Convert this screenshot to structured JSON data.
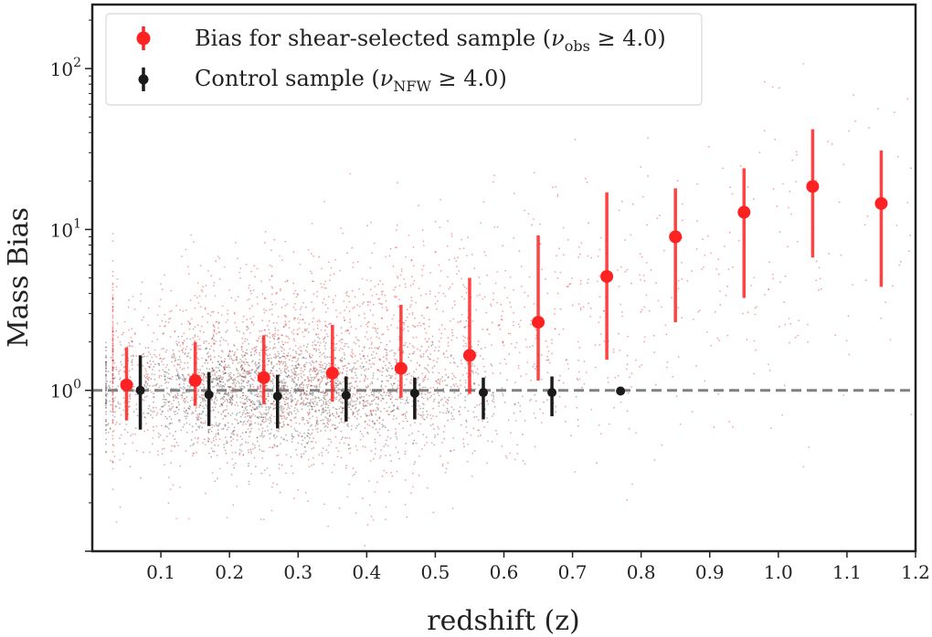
{
  "chart_data": {
    "type": "scatter",
    "title": "",
    "xlabel": "redshift (z)",
    "ylabel": "Mass Bias",
    "xlim": [
      0.0,
      1.2
    ],
    "ylim": [
      0.1,
      250
    ],
    "yscale": "log",
    "grid": false,
    "legend_position": "top-left",
    "x_ticks": [
      "0.1",
      "0.2",
      "0.3",
      "0.4",
      "0.5",
      "0.6",
      "0.7",
      "0.8",
      "0.9",
      "1.0",
      "1.1",
      "1.2"
    ],
    "y_ticks": [
      {
        "base": "10",
        "exp": "0",
        "value": 1
      },
      {
        "base": "10",
        "exp": "1",
        "value": 10
      },
      {
        "base": "10",
        "exp": "2",
        "value": 100
      }
    ],
    "reference_line": {
      "y": 1.0,
      "style": "dashed",
      "color": "#808080"
    },
    "series": [
      {
        "name": "Bias for shear-selected sample",
        "legend_pre": "Bias for shear-selected sample (",
        "legend_sym": "ν",
        "legend_sub": "obs",
        "legend_post": " ≥ 4.0)",
        "color": "#ff2222",
        "x": [
          0.05,
          0.15,
          0.25,
          0.35,
          0.45,
          0.55,
          0.65,
          0.75,
          0.85,
          0.95,
          1.05,
          1.15
        ],
        "y": [
          1.08,
          1.15,
          1.2,
          1.28,
          1.37,
          1.65,
          2.65,
          5.1,
          9.0,
          12.8,
          18.5,
          14.5
        ],
        "y_low": [
          0.65,
          0.8,
          0.82,
          0.85,
          0.9,
          0.95,
          1.15,
          1.55,
          2.65,
          3.75,
          6.7,
          4.4
        ],
        "y_high": [
          1.85,
          2.0,
          2.2,
          2.55,
          3.4,
          5.0,
          9.2,
          17.0,
          18.0,
          24.0,
          42.0,
          31.0
        ]
      },
      {
        "name": "Control sample",
        "legend_pre": "Control sample (",
        "legend_sym": "ν",
        "legend_sub": "NFW",
        "legend_post": " ≥ 4.0)",
        "color": "#1a1a1a",
        "x": [
          0.07,
          0.17,
          0.27,
          0.37,
          0.47,
          0.57,
          0.67,
          0.77
        ],
        "y": [
          1.0,
          0.94,
          0.92,
          0.93,
          0.96,
          0.97,
          0.97,
          0.99
        ],
        "y_low": [
          0.57,
          0.6,
          0.58,
          0.64,
          0.66,
          0.66,
          0.69,
          0.99
        ],
        "y_high": [
          1.65,
          1.3,
          1.25,
          1.22,
          1.2,
          1.2,
          1.22,
          0.99
        ]
      }
    ]
  }
}
